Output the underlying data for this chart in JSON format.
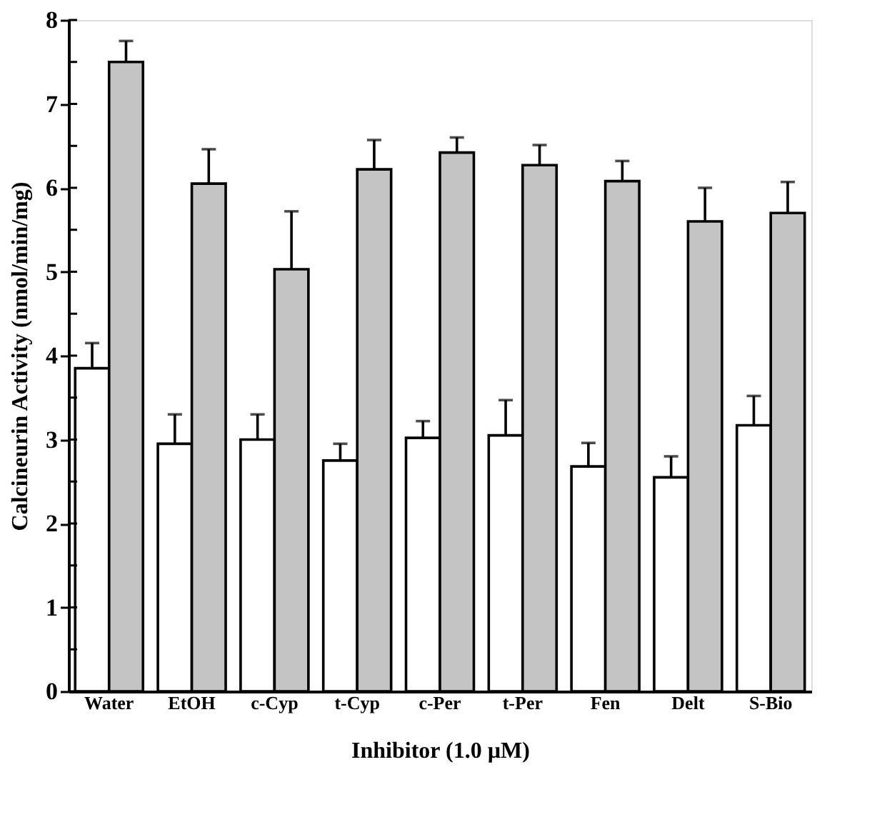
{
  "chart_data": {
    "type": "bar",
    "xlabel": "Inhibitor (1.0 µM)",
    "ylabel": "Calcineurin Activity (nmol/min/mg)",
    "categories": [
      "Water",
      "EtOH",
      "c-Cyp",
      "t-Cyp",
      "c-Per",
      "t-Per",
      "Fen",
      "Delt",
      "S-Bio"
    ],
    "series": [
      {
        "color": "#ffffff",
        "values": [
          3.85,
          2.95,
          3.0,
          2.75,
          3.02,
          3.05,
          2.68,
          2.55,
          3.17
        ],
        "errors": [
          [
            3.85,
            4.15
          ],
          [
            2.95,
            3.3
          ],
          [
            3.0,
            3.3
          ],
          [
            2.75,
            2.95
          ],
          [
            3.02,
            3.22
          ],
          [
            3.05,
            3.47
          ],
          [
            2.68,
            2.96
          ],
          [
            2.55,
            2.8
          ],
          [
            3.17,
            3.52
          ]
        ]
      },
      {
        "color": "#c4c4c4",
        "values": [
          7.5,
          6.05,
          5.03,
          6.22,
          6.42,
          6.27,
          6.08,
          5.6,
          5.7
        ],
        "errors": [
          [
            7.5,
            7.75
          ],
          [
            6.05,
            6.46
          ],
          [
            5.03,
            5.72
          ],
          [
            6.22,
            6.57
          ],
          [
            6.42,
            6.6
          ],
          [
            6.27,
            6.51
          ],
          [
            6.08,
            6.32
          ],
          [
            5.6,
            6.0
          ],
          [
            5.7,
            6.07
          ]
        ]
      }
    ],
    "ylim": [
      0,
      8
    ],
    "yticks": [
      0,
      {
        "value": 0.5,
        "label": null
      },
      1,
      {
        "value": 1.5,
        "label": null
      },
      2,
      {
        "value": 2.5,
        "label": null
      },
      3,
      {
        "value": 3.5,
        "label": null
      },
      4,
      {
        "value": 4.5,
        "label": null
      },
      5,
      {
        "value": 5.5,
        "label": null
      },
      6,
      {
        "value": 6.5,
        "label": null
      },
      7,
      {
        "value": 7.5,
        "label": null
      },
      8
    ],
    "grid": false,
    "legend": false
  }
}
